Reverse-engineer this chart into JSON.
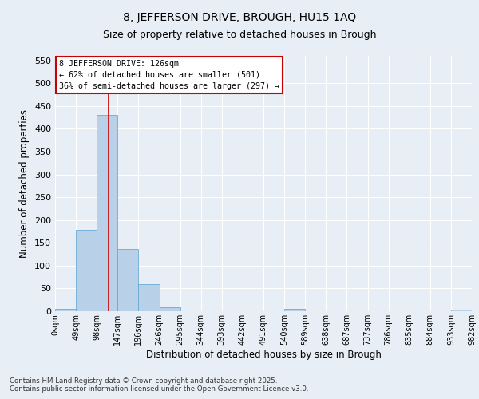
{
  "title": "8, JEFFERSON DRIVE, BROUGH, HU15 1AQ",
  "subtitle": "Size of property relative to detached houses in Brough",
  "xlabel": "Distribution of detached houses by size in Brough",
  "ylabel": "Number of detached properties",
  "bar_values": [
    5,
    178,
    430,
    137,
    59,
    8,
    0,
    0,
    0,
    0,
    0,
    5,
    0,
    0,
    0,
    0,
    0,
    0,
    0,
    4
  ],
  "bin_labels": [
    "0sqm",
    "49sqm",
    "98sqm",
    "147sqm",
    "196sqm",
    "246sqm",
    "295sqm",
    "344sqm",
    "393sqm",
    "442sqm",
    "491sqm",
    "540sqm",
    "589sqm",
    "638sqm",
    "687sqm",
    "737sqm",
    "786sqm",
    "835sqm",
    "884sqm",
    "933sqm",
    "982sqm"
  ],
  "bar_color": "#b8d0e8",
  "bar_edge_color": "#6aaad4",
  "bg_color": "#e8eef5",
  "grid_color": "#ffffff",
  "vline_x": 2.57,
  "vline_color": "#cc0000",
  "annotation_text": "8 JEFFERSON DRIVE: 126sqm\n← 62% of detached houses are smaller (501)\n36% of semi-detached houses are larger (297) →",
  "annotation_box_color": "#cc0000",
  "annotation_bg": "#ffffff",
  "footer_text": "Contains HM Land Registry data © Crown copyright and database right 2025.\nContains public sector information licensed under the Open Government Licence v3.0.",
  "ylim": [
    0,
    560
  ],
  "yticks": [
    0,
    50,
    100,
    150,
    200,
    250,
    300,
    350,
    400,
    450,
    500,
    550
  ],
  "num_bins": 20,
  "figsize": [
    6.0,
    5.0
  ],
  "dpi": 100
}
